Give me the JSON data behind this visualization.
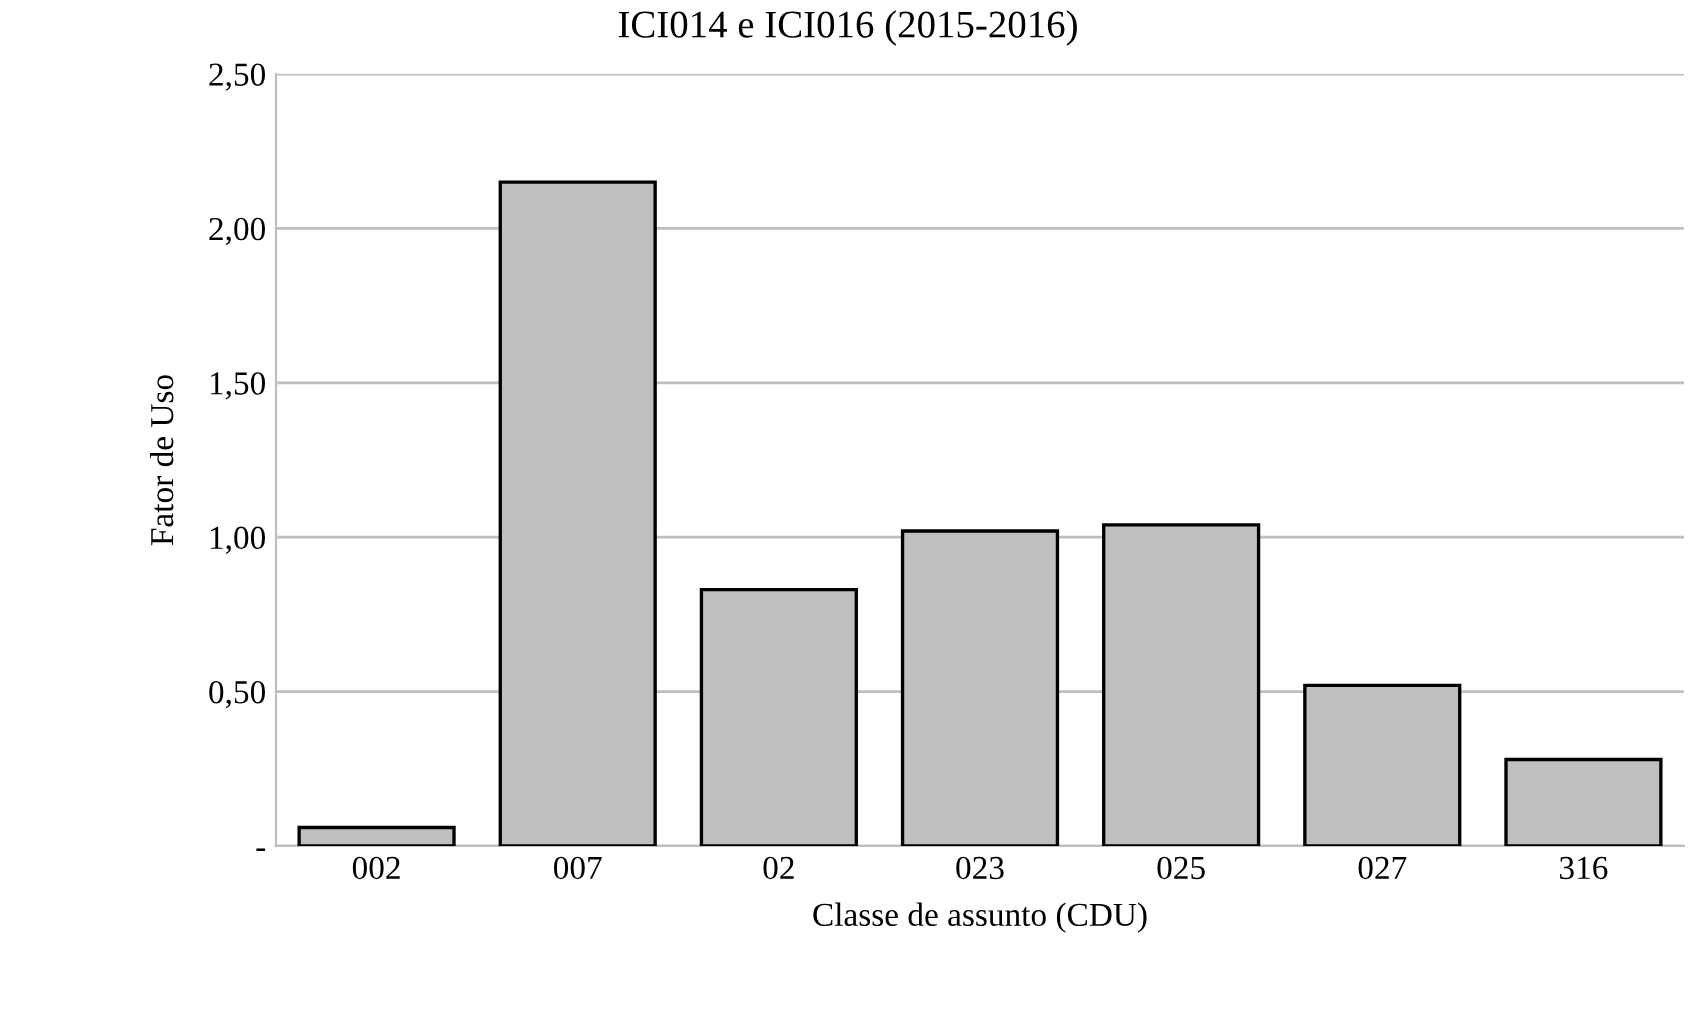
{
  "chart_data": {
    "type": "bar",
    "title": "ICI014 e ICI016 (2015-2016)",
    "xlabel": "Classe de assunto (CDU)",
    "ylabel": "Fator de Uso",
    "categories": [
      "002",
      "007",
      "02",
      "023",
      "025",
      "027",
      "316"
    ],
    "values": [
      0.06,
      2.15,
      0.83,
      1.02,
      1.04,
      0.52,
      0.28
    ],
    "color": "#bfbfbf",
    "ylim": [
      0,
      2.5
    ],
    "yticks": [
      {
        "value": 0,
        "label": "-"
      },
      {
        "value": 0.5,
        "label": "0,50"
      },
      {
        "value": 1,
        "label": "1,00"
      },
      {
        "value": 1.5,
        "label": "1,50"
      },
      {
        "value": 2,
        "label": "2,00"
      },
      {
        "value": 2.5,
        "label": "2,50"
      }
    ],
    "grid": "y",
    "legend": false
  }
}
